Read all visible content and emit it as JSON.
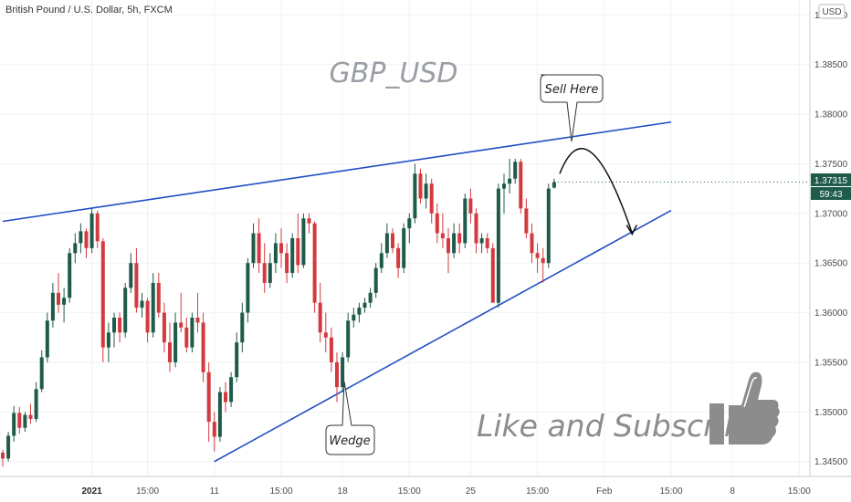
{
  "header": {
    "symbol_title": "British Pound / U.S. Dollar, 5h, FXCM",
    "currency_label": "USD",
    "watermark": "GBP_USD"
  },
  "annotations": {
    "sell_label": "Sell Here",
    "wedge_label": "Wedge",
    "like_subscribe": "Like and Subscribe!",
    "thumbs_up_icon": "thumbs-up-icon"
  },
  "current_price": {
    "value": "1.37315",
    "countdown": "59:43",
    "color": "#1e5b4a"
  },
  "colors": {
    "bull": "#1e5b4a",
    "bear": "#d33a3f",
    "trendline": "#1f4fc4",
    "background": "#ffffff",
    "grid": "#f0f2f5"
  },
  "chart_data": {
    "type": "candlestick",
    "title": "British Pound / U.S. Dollar, 5h, FXCM",
    "ylabel": "USD",
    "ylim": [
      1.3435,
      1.3915
    ],
    "y_ticks": [
      "1.34500",
      "1.35000",
      "1.35500",
      "1.36000",
      "1.36500",
      "1.37000",
      "1.37500",
      "1.38000",
      "1.38500",
      "1.39000"
    ],
    "x_ticks": [
      {
        "label": "2021",
        "bold": true,
        "bar": 16
      },
      {
        "label": "15:00",
        "bold": false,
        "bar": 26
      },
      {
        "label": "11",
        "bold": false,
        "bar": 38
      },
      {
        "label": "15:00",
        "bold": false,
        "bar": 50
      },
      {
        "label": "18",
        "bold": false,
        "bar": 61
      },
      {
        "label": "15:00",
        "bold": false,
        "bar": 73
      },
      {
        "label": "25",
        "bold": false,
        "bar": 84
      },
      {
        "label": "15:00",
        "bold": false,
        "bar": 96
      },
      {
        "label": "Feb",
        "bold": false,
        "bar": 108
      },
      {
        "label": "15:00",
        "bold": false,
        "bar": 120
      },
      {
        "label": "8",
        "bold": false,
        "bar": 131
      },
      {
        "label": "15:00",
        "bold": false,
        "bar": 143
      }
    ],
    "candles": [
      [
        1.3459,
        1.3462,
        1.3445,
        1.3453
      ],
      [
        1.3453,
        1.348,
        1.345,
        1.3476
      ],
      [
        1.3476,
        1.3506,
        1.347,
        1.3499
      ],
      [
        1.3499,
        1.3505,
        1.3478,
        1.3484
      ],
      [
        1.3484,
        1.35,
        1.348,
        1.3497
      ],
      [
        1.3497,
        1.3508,
        1.3488,
        1.3493
      ],
      [
        1.3493,
        1.353,
        1.349,
        1.3523
      ],
      [
        1.3523,
        1.3562,
        1.352,
        1.3555
      ],
      [
        1.3555,
        1.36,
        1.355,
        1.3592
      ],
      [
        1.3592,
        1.363,
        1.3585,
        1.362
      ],
      [
        1.362,
        1.364,
        1.36,
        1.3608
      ],
      [
        1.3608,
        1.3625,
        1.359,
        1.3615
      ],
      [
        1.3615,
        1.3665,
        1.361,
        1.366
      ],
      [
        1.366,
        1.368,
        1.365,
        1.367
      ],
      [
        1.367,
        1.369,
        1.366,
        1.3682
      ],
      [
        1.3682,
        1.3685,
        1.3655,
        1.3665
      ],
      [
        1.3665,
        1.3705,
        1.366,
        1.37
      ],
      [
        1.37,
        1.3703,
        1.3665,
        1.3672
      ],
      [
        1.3672,
        1.3675,
        1.355,
        1.3565
      ],
      [
        1.3565,
        1.359,
        1.355,
        1.358
      ],
      [
        1.358,
        1.36,
        1.3565,
        1.3595
      ],
      [
        1.3595,
        1.36,
        1.357,
        1.358
      ],
      [
        1.358,
        1.363,
        1.3575,
        1.3625
      ],
      [
        1.3625,
        1.366,
        1.362,
        1.365
      ],
      [
        1.365,
        1.3665,
        1.36,
        1.3605
      ],
      [
        1.3605,
        1.362,
        1.3595,
        1.3612
      ],
      [
        1.3612,
        1.3615,
        1.357,
        1.358
      ],
      [
        1.358,
        1.364,
        1.3575,
        1.363
      ],
      [
        1.363,
        1.364,
        1.3595,
        1.36
      ],
      [
        1.36,
        1.361,
        1.356,
        1.357
      ],
      [
        1.357,
        1.359,
        1.354,
        1.355
      ],
      [
        1.355,
        1.36,
        1.3545,
        1.359
      ],
      [
        1.359,
        1.362,
        1.358,
        1.3585
      ],
      [
        1.3585,
        1.3595,
        1.356,
        1.3565
      ],
      [
        1.3565,
        1.36,
        1.356,
        1.3595
      ],
      [
        1.3595,
        1.362,
        1.358,
        1.359
      ],
      [
        1.359,
        1.36,
        1.353,
        1.354
      ],
      [
        1.354,
        1.355,
        1.347,
        1.349
      ],
      [
        1.349,
        1.35,
        1.346,
        1.3475
      ],
      [
        1.3475,
        1.3525,
        1.347,
        1.352
      ],
      [
        1.352,
        1.353,
        1.35,
        1.351
      ],
      [
        1.351,
        1.354,
        1.3505,
        1.3535
      ],
      [
        1.3535,
        1.358,
        1.353,
        1.357
      ],
      [
        1.357,
        1.361,
        1.356,
        1.36
      ],
      [
        1.36,
        1.3655,
        1.359,
        1.365
      ],
      [
        1.365,
        1.369,
        1.3645,
        1.368
      ],
      [
        1.368,
        1.3695,
        1.364,
        1.365
      ],
      [
        1.365,
        1.367,
        1.362,
        1.363
      ],
      [
        1.363,
        1.366,
        1.3625,
        1.365
      ],
      [
        1.365,
        1.368,
        1.364,
        1.367
      ],
      [
        1.367,
        1.3685,
        1.3645,
        1.366
      ],
      [
        1.366,
        1.367,
        1.363,
        1.364
      ],
      [
        1.364,
        1.368,
        1.3635,
        1.3675
      ],
      [
        1.3675,
        1.37,
        1.364,
        1.3648
      ],
      [
        1.3648,
        1.37,
        1.3645,
        1.3695
      ],
      [
        1.3695,
        1.37,
        1.368,
        1.369
      ],
      [
        1.369,
        1.3692,
        1.36,
        1.361
      ],
      [
        1.361,
        1.363,
        1.357,
        1.358
      ],
      [
        1.358,
        1.36,
        1.356,
        1.3575
      ],
      [
        1.3575,
        1.3585,
        1.354,
        1.355
      ],
      [
        1.355,
        1.356,
        1.351,
        1.3525
      ],
      [
        1.3525,
        1.356,
        1.352,
        1.3555
      ],
      [
        1.3555,
        1.36,
        1.355,
        1.3592
      ],
      [
        1.3592,
        1.3605,
        1.3585,
        1.3598
      ],
      [
        1.3598,
        1.361,
        1.359,
        1.3605
      ],
      [
        1.3605,
        1.3615,
        1.36,
        1.361
      ],
      [
        1.361,
        1.3625,
        1.3605,
        1.362
      ],
      [
        1.362,
        1.365,
        1.3615,
        1.3645
      ],
      [
        1.3645,
        1.367,
        1.364,
        1.366
      ],
      [
        1.366,
        1.369,
        1.3655,
        1.368
      ],
      [
        1.368,
        1.3685,
        1.366,
        1.3665
      ],
      [
        1.3665,
        1.367,
        1.3635,
        1.3645
      ],
      [
        1.3645,
        1.369,
        1.364,
        1.3685
      ],
      [
        1.3685,
        1.37,
        1.367,
        1.3695
      ],
      [
        1.3695,
        1.375,
        1.369,
        1.374
      ],
      [
        1.374,
        1.3745,
        1.371,
        1.3715
      ],
      [
        1.3715,
        1.374,
        1.3705,
        1.373
      ],
      [
        1.373,
        1.3735,
        1.369,
        1.37
      ],
      [
        1.37,
        1.371,
        1.367,
        1.368
      ],
      [
        1.368,
        1.37,
        1.3665,
        1.3675
      ],
      [
        1.3675,
        1.3685,
        1.364,
        1.366
      ],
      [
        1.366,
        1.369,
        1.3655,
        1.368
      ],
      [
        1.368,
        1.369,
        1.366,
        1.367
      ],
      [
        1.367,
        1.372,
        1.3665,
        1.3715
      ],
      [
        1.3715,
        1.3725,
        1.369,
        1.37
      ],
      [
        1.37,
        1.3705,
        1.366,
        1.367
      ],
      [
        1.367,
        1.368,
        1.366,
        1.3675
      ],
      [
        1.3675,
        1.368,
        1.366,
        1.3665
      ],
      [
        1.3665,
        1.367,
        1.361,
        1.361
      ],
      [
        1.361,
        1.373,
        1.3605,
        1.3725
      ],
      [
        1.3725,
        1.374,
        1.37,
        1.373
      ],
      [
        1.373,
        1.3755,
        1.372,
        1.3735
      ],
      [
        1.3735,
        1.3755,
        1.373,
        1.3752
      ],
      [
        1.3752,
        1.3755,
        1.37,
        1.3705
      ],
      [
        1.3705,
        1.3715,
        1.3675,
        1.368
      ],
      [
        1.368,
        1.369,
        1.365,
        1.366
      ],
      [
        1.366,
        1.367,
        1.364,
        1.3655
      ],
      [
        1.3655,
        1.3665,
        1.363,
        1.365
      ],
      [
        1.365,
        1.373,
        1.3645,
        1.3725
      ],
      [
        1.3726,
        1.3735,
        1.3725,
        1.37315
      ]
    ],
    "trendlines": [
      {
        "name": "upper",
        "from": {
          "bar": 0,
          "price": 1.3692
        },
        "to": {
          "bar": 120,
          "price": 1.3792
        }
      },
      {
        "name": "lower",
        "from": {
          "bar": 38,
          "price": 1.345
        },
        "to": {
          "bar": 120,
          "price": 1.3703
        }
      }
    ],
    "projection": {
      "start": {
        "bar": 100,
        "price": 1.374
      },
      "peak": {
        "bar": 105,
        "price": 1.3775
      },
      "end": {
        "bar": 113,
        "price": 1.368
      }
    }
  }
}
